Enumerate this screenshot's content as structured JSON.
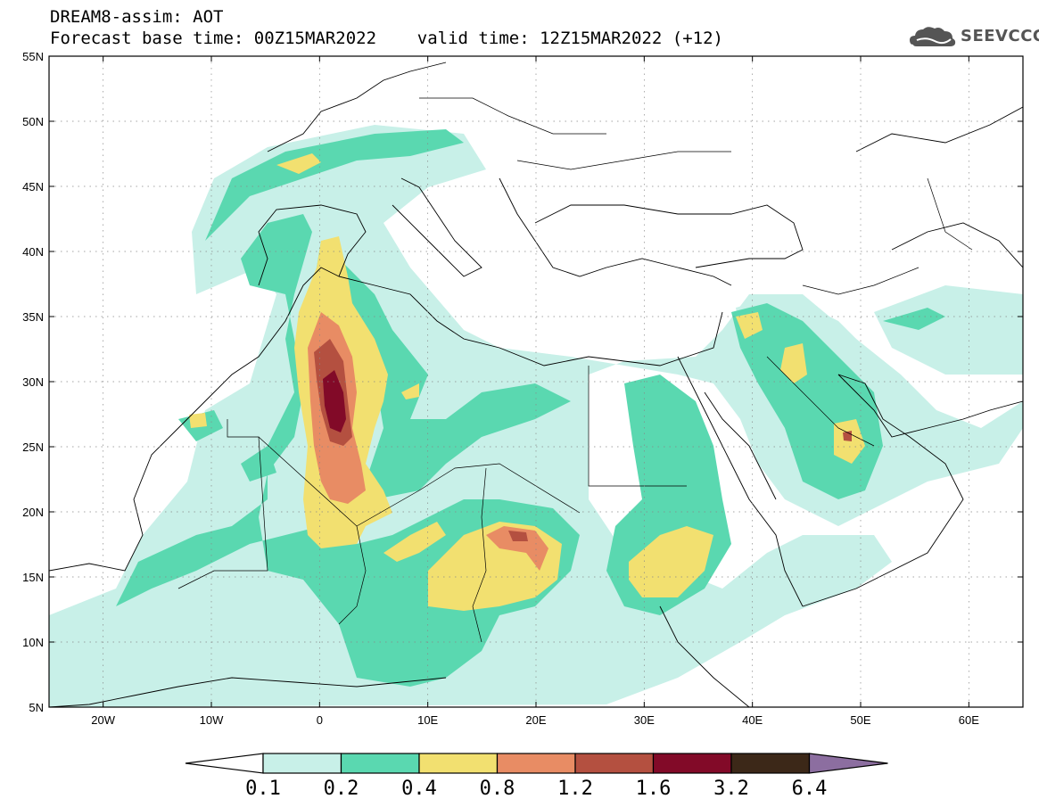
{
  "header": {
    "title_line1": "DREAM8-assim: AOT",
    "title_line2": "Forecast base time: 00Z15MAR2022    valid time: 12Z15MAR2022 (+12)"
  },
  "logo": {
    "text": "SEEVCCC",
    "icon": "cloud-logo-icon"
  },
  "map": {
    "lon_ticks": [
      "20W",
      "10W",
      "0",
      "10E",
      "20E",
      "30E",
      "40E",
      "50E",
      "60E"
    ],
    "lat_ticks": [
      "55N",
      "50N",
      "45N",
      "40N",
      "35N",
      "30N",
      "25N",
      "20N",
      "15N",
      "10N",
      "5N"
    ],
    "lon_range": [
      -25,
      65
    ],
    "lat_range": [
      5,
      55
    ],
    "gridlines": "dotted"
  },
  "colorbar": {
    "labels": [
      "0.1",
      "0.2",
      "0.4",
      "0.8",
      "1.2",
      "1.6",
      "3.2",
      "6.4"
    ],
    "colors": [
      "#c8f0e8",
      "#5ad8b0",
      "#f2e070",
      "#e88c64",
      "#b45040",
      "#820a28",
      "#3c2818",
      "#8c6ea0"
    ],
    "low_color": "#ffffff"
  }
}
